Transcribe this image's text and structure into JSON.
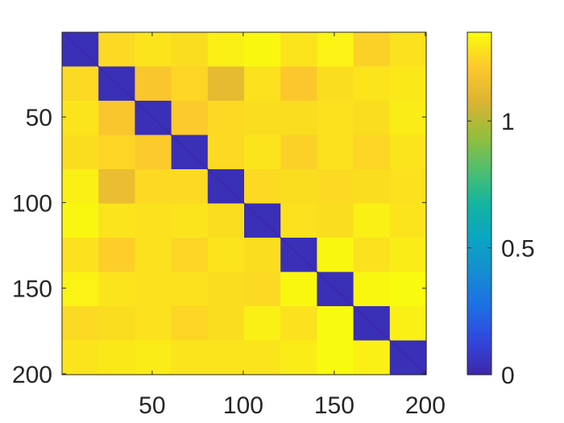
{
  "chart_data": {
    "type": "heatmap",
    "title": "",
    "xlabel": "",
    "ylabel": "",
    "n": 200,
    "blocks": 10,
    "block_size": 20,
    "xlim": [
      1,
      200
    ],
    "ylim": [
      1,
      200
    ],
    "y_direction": "reverse",
    "x_ticks": [
      50,
      100,
      150,
      200
    ],
    "x_tick_labels": [
      "50",
      "100",
      "150",
      "200"
    ],
    "y_ticks": [
      50,
      100,
      150,
      200
    ],
    "y_tick_labels": [
      "50",
      "100",
      "150",
      "200"
    ],
    "colormap": "parula",
    "clim": [
      0,
      1.35
    ],
    "colorbar": {
      "placement": "right",
      "ticks": [
        0,
        0.5,
        1
      ],
      "tick_labels": [
        "0",
        "0.5",
        "1"
      ]
    },
    "block_values": [
      [
        0.04,
        1.26,
        1.29,
        1.27,
        1.32,
        1.34,
        1.29,
        1.33,
        1.24,
        1.28
      ],
      [
        1.26,
        0.04,
        1.2,
        1.25,
        1.12,
        1.28,
        1.21,
        1.27,
        1.29,
        1.3
      ],
      [
        1.29,
        1.2,
        0.04,
        1.22,
        1.26,
        1.27,
        1.27,
        1.28,
        1.27,
        1.31
      ],
      [
        1.27,
        1.25,
        1.22,
        0.04,
        1.26,
        1.29,
        1.24,
        1.28,
        1.25,
        1.29
      ],
      [
        1.32,
        1.14,
        1.26,
        1.26,
        0.04,
        1.26,
        1.27,
        1.26,
        1.27,
        1.28
      ],
      [
        1.34,
        1.29,
        1.28,
        1.29,
        1.27,
        0.04,
        1.28,
        1.27,
        1.32,
        1.29
      ],
      [
        1.28,
        1.23,
        1.28,
        1.25,
        1.29,
        1.27,
        0.04,
        1.34,
        1.28,
        1.31
      ],
      [
        1.33,
        1.29,
        1.28,
        1.28,
        1.27,
        1.26,
        1.34,
        0.04,
        1.34,
        1.35
      ],
      [
        1.26,
        1.27,
        1.28,
        1.25,
        1.27,
        1.32,
        1.28,
        1.35,
        0.04,
        1.32
      ],
      [
        1.29,
        1.3,
        1.31,
        1.29,
        1.29,
        1.29,
        1.31,
        1.35,
        1.32,
        0.04
      ]
    ]
  }
}
